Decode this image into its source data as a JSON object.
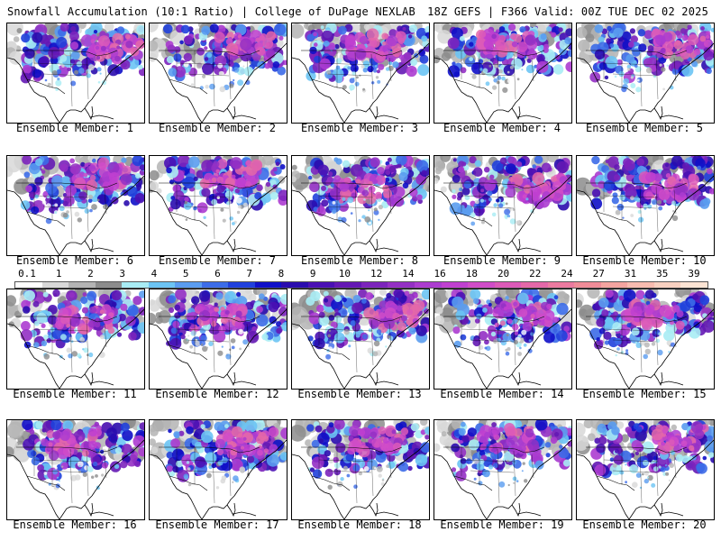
{
  "header": {
    "title_left": "Snowfall Accumulation (10:1 Ratio) | College of DuPage NEXLAB",
    "title_right": "18Z GEFS | F366 Valid: 00Z TUE DEC 02 2025"
  },
  "members": [
    {
      "label": "Ensemble Member: 1"
    },
    {
      "label": "Ensemble Member: 2"
    },
    {
      "label": "Ensemble Member: 3"
    },
    {
      "label": "Ensemble Member: 4"
    },
    {
      "label": "Ensemble Member: 5"
    },
    {
      "label": "Ensemble Member: 6"
    },
    {
      "label": "Ensemble Member: 7"
    },
    {
      "label": "Ensemble Member: 8"
    },
    {
      "label": "Ensemble Member: 9"
    },
    {
      "label": "Ensemble Member: 10"
    },
    {
      "label": "Ensemble Member: 11"
    },
    {
      "label": "Ensemble Member: 12"
    },
    {
      "label": "Ensemble Member: 13"
    },
    {
      "label": "Ensemble Member: 14"
    },
    {
      "label": "Ensemble Member: 15"
    },
    {
      "label": "Ensemble Member: 16"
    },
    {
      "label": "Ensemble Member: 17"
    },
    {
      "label": "Ensemble Member: 18"
    },
    {
      "label": "Ensemble Member: 19"
    },
    {
      "label": "Ensemble Member: 20"
    }
  ],
  "colorbar": {
    "labels": [
      "0.1",
      "1",
      "2",
      "3",
      "4",
      "5",
      "6",
      "7",
      "8",
      "9",
      "10",
      "12",
      "14",
      "16",
      "18",
      "20",
      "22",
      "24",
      "27",
      "31",
      "35",
      "39"
    ],
    "colors": [
      "#ffffff",
      "#d8d8d8",
      "#b4b4b4",
      "#8c8c8c",
      "#a8ecf4",
      "#6cc4f4",
      "#5a9cf0",
      "#3c6ce8",
      "#2040dc",
      "#1010c8",
      "#2a0cae",
      "#4a10b4",
      "#6418b4",
      "#7c24bc",
      "#9430c4",
      "#ac3cd0",
      "#c040d0",
      "#d04cc8",
      "#dc5ab8",
      "#e468a8",
      "#ec7aa0",
      "#f08c98",
      "#f4a4a0",
      "#f8bcb0",
      "#f8d0c0",
      "#fce4d4"
    ]
  }
}
